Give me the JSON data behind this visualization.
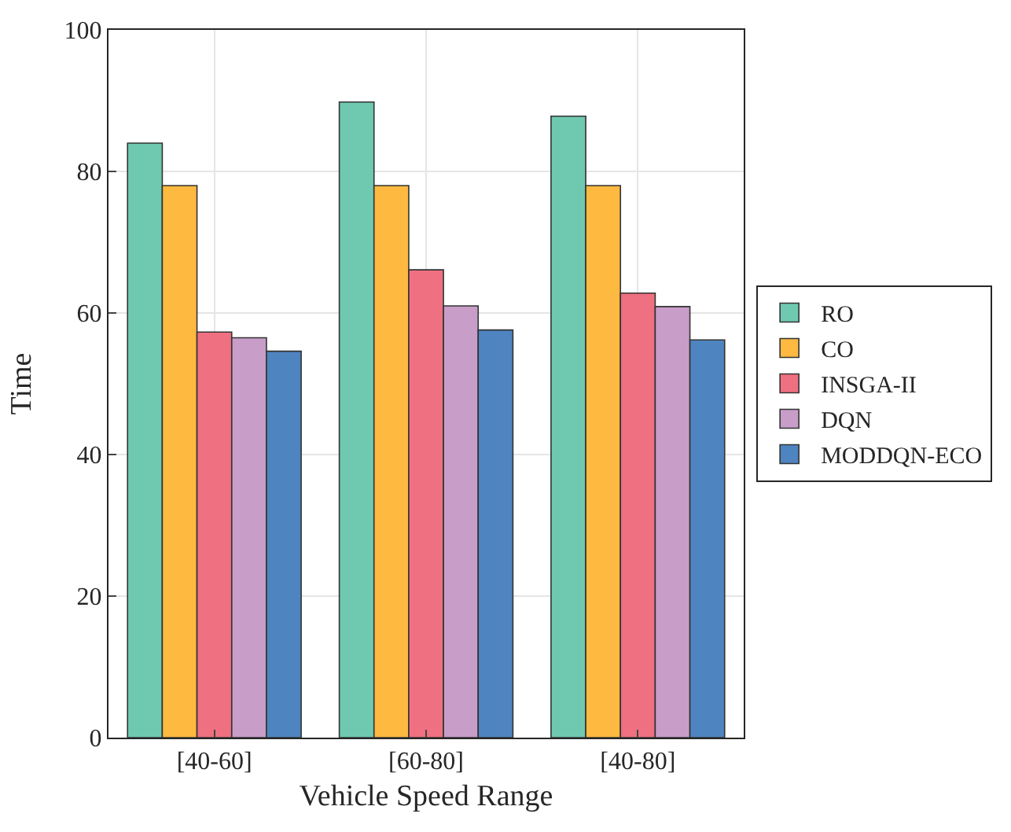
{
  "chart_data": {
    "type": "bar",
    "xlabel": "Vehicle Speed Range",
    "ylabel": "Time",
    "categories": [
      "[40-60]",
      "[60-80]",
      "[40-80]"
    ],
    "series": [
      {
        "name": "RO",
        "color": "#6fc9b0",
        "values": [
          84,
          89.8,
          87.8
        ]
      },
      {
        "name": "CO",
        "color": "#fdb940",
        "values": [
          78,
          78,
          78
        ]
      },
      {
        "name": "INSGA-II",
        "color": "#ef7080",
        "values": [
          57.3,
          66.1,
          62.8
        ]
      },
      {
        "name": "DQN",
        "color": "#c89dc8",
        "values": [
          56.5,
          61,
          60.9
        ]
      },
      {
        "name": "MODDQN-ECO",
        "color": "#4e84c0",
        "values": [
          54.6,
          57.6,
          56.2
        ]
      }
    ],
    "ylim": [
      0,
      100
    ],
    "yticks": [
      0,
      20,
      40,
      60,
      80,
      100
    ],
    "grid": true,
    "legend": "right"
  }
}
